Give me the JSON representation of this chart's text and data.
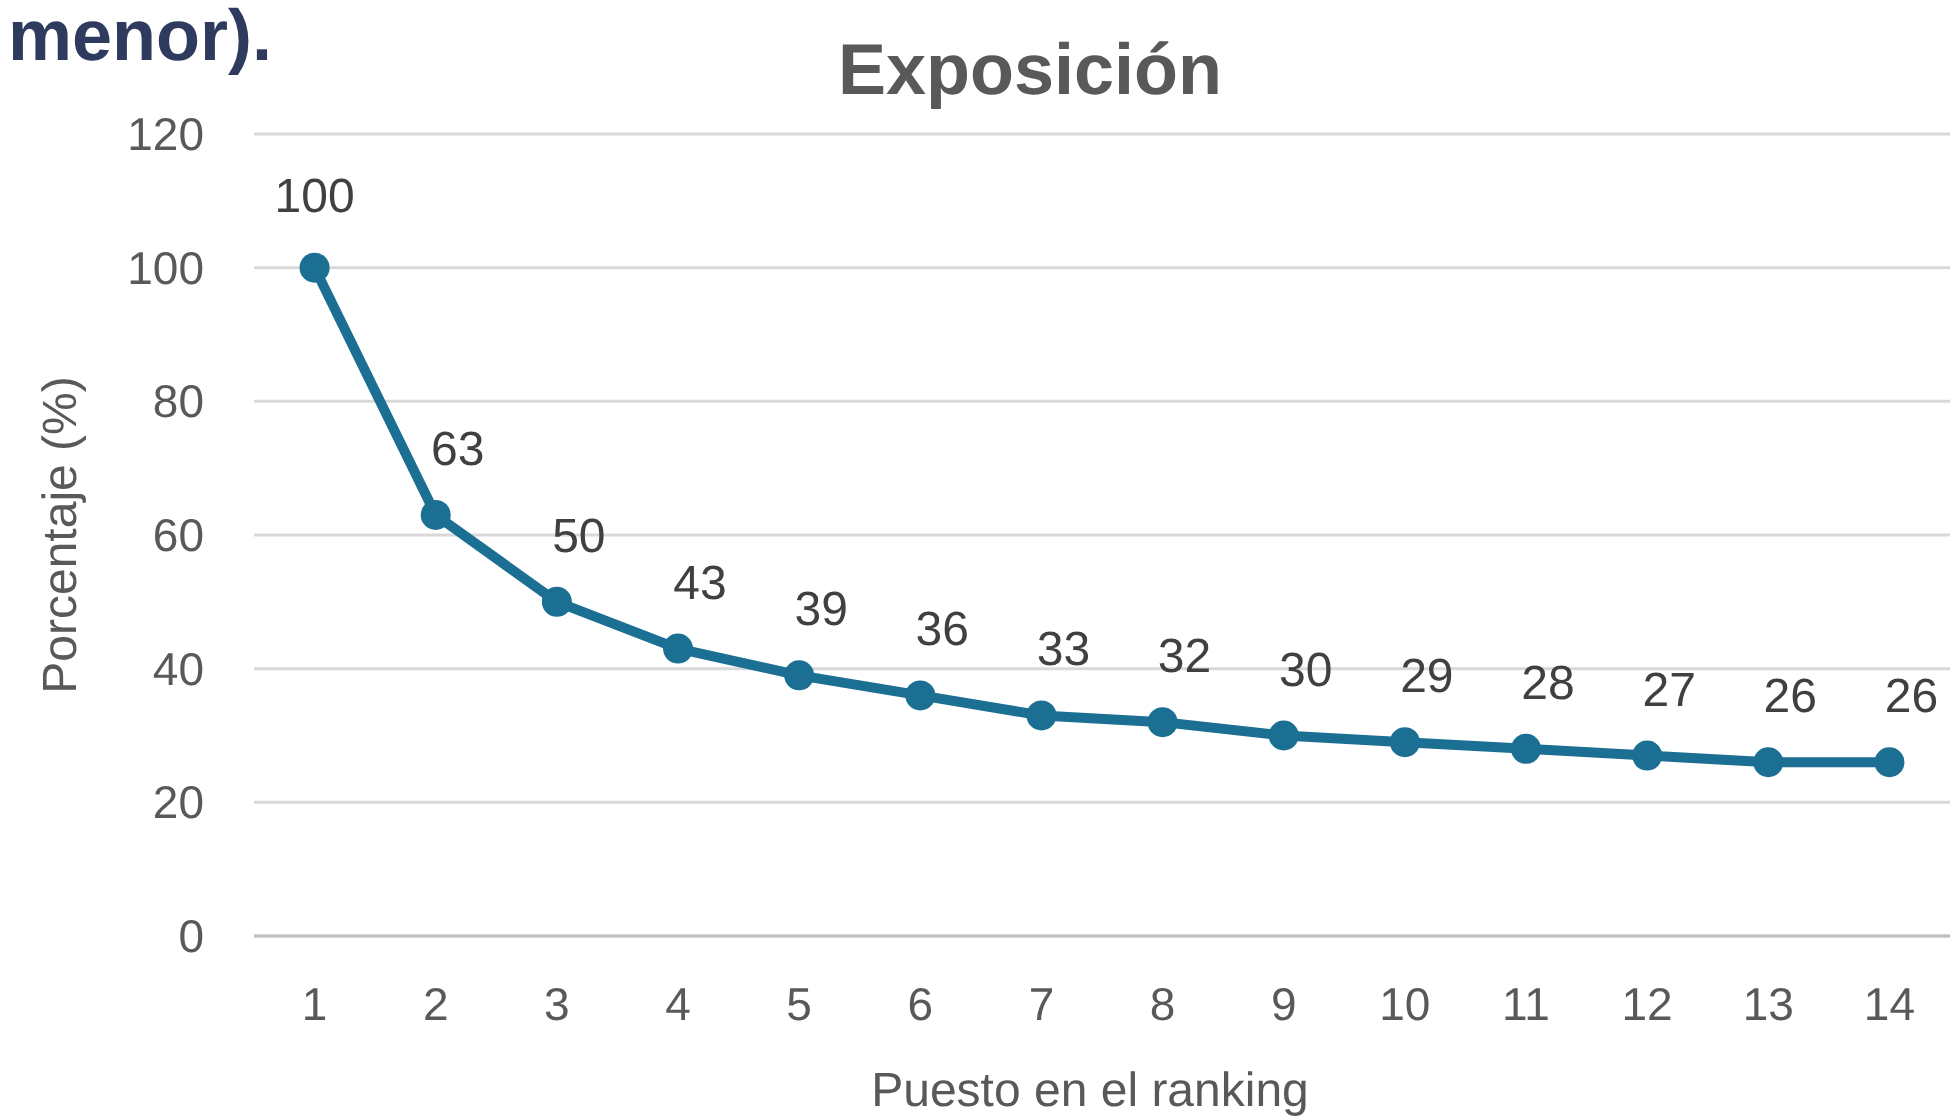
{
  "chart_data": {
    "type": "line",
    "title": "Exposición",
    "xlabel": "Puesto en el ranking",
    "ylabel": "Porcentaje (%)",
    "annotations": [
      "menor)."
    ],
    "x": [
      1,
      2,
      3,
      4,
      5,
      6,
      7,
      8,
      9,
      10,
      11,
      12,
      13,
      14
    ],
    "xlim": [
      0.5,
      14.5
    ],
    "xticks": [
      1,
      2,
      3,
      4,
      5,
      6,
      7,
      8,
      9,
      10,
      11,
      12,
      13,
      14
    ],
    "series": [
      {
        "color": "#1b6f93",
        "values": [
          100,
          63,
          50,
          43,
          39,
          36,
          33,
          32,
          30,
          29,
          28,
          27,
          26,
          26
        ]
      }
    ],
    "ylim": [
      0,
      120
    ],
    "yticks": [
      0,
      20,
      40,
      60,
      80,
      100,
      120
    ],
    "grid": "y",
    "marker": "circle",
    "line_style": "solid",
    "data_labels": true
  }
}
